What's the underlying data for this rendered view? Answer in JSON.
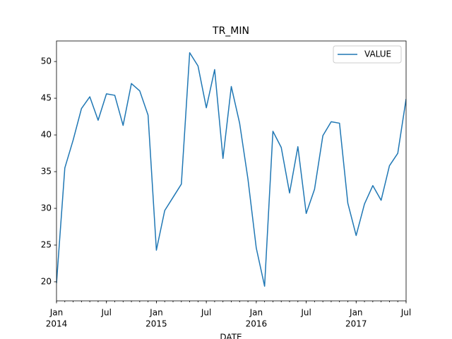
{
  "chart_data": {
    "type": "line",
    "title": "TR_MIN",
    "xlabel": "DATE",
    "x": [
      "2014-01",
      "2014-02",
      "2014-03",
      "2014-04",
      "2014-05",
      "2014-06",
      "2014-07",
      "2014-08",
      "2014-09",
      "2014-10",
      "2014-11",
      "2014-12",
      "2015-01",
      "2015-02",
      "2015-03",
      "2015-04",
      "2015-05",
      "2015-06",
      "2015-07",
      "2015-08",
      "2015-09",
      "2015-10",
      "2015-11",
      "2015-12",
      "2016-01",
      "2016-02",
      "2016-03",
      "2016-04",
      "2016-05",
      "2016-06",
      "2016-07",
      "2016-08",
      "2016-09",
      "2016-10",
      "2016-11",
      "2016-12",
      "2017-01",
      "2017-02",
      "2017-03",
      "2017-04",
      "2017-05",
      "2017-06",
      "2017-07"
    ],
    "series": [
      {
        "name": "VALUE",
        "color": "#1f77b4",
        "values": [
          19.8,
          35.5,
          39.3,
          43.6,
          45.2,
          42.0,
          45.6,
          45.4,
          41.3,
          47.0,
          46.0,
          42.7,
          24.3,
          29.7,
          31.5,
          33.3,
          51.2,
          49.4,
          43.7,
          48.9,
          36.8,
          46.6,
          41.6,
          34.0,
          24.6,
          19.4,
          40.5,
          38.3,
          32.1,
          38.4,
          29.3,
          32.6,
          39.9,
          41.8,
          41.6,
          30.7,
          26.3,
          30.6,
          33.1,
          31.1,
          35.8,
          37.5,
          44.9
        ]
      }
    ],
    "xlim": [
      "2014-01",
      "2017-07"
    ],
    "xticks": [
      {
        "value": "2014-01",
        "label": "Jan",
        "year": "2014"
      },
      {
        "value": "2014-07",
        "label": "Jul"
      },
      {
        "value": "2015-01",
        "label": "Jan",
        "year": "2015"
      },
      {
        "value": "2015-07",
        "label": "Jul"
      },
      {
        "value": "2016-01",
        "label": "Jan",
        "year": "2016"
      },
      {
        "value": "2016-07",
        "label": "Jul"
      },
      {
        "value": "2017-01",
        "label": "Jan",
        "year": "2017"
      },
      {
        "value": "2017-07",
        "label": "Jul"
      }
    ],
    "ylim": [
      17.4,
      52.8
    ],
    "yticks": [
      20,
      25,
      30,
      35,
      40,
      45,
      50
    ],
    "legend": "upper right",
    "grid": false
  }
}
